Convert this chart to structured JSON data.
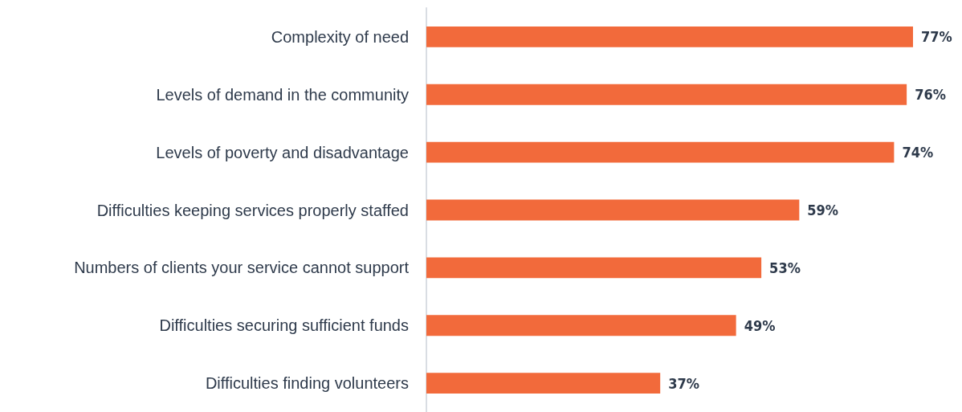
{
  "chart_data": {
    "type": "bar",
    "orientation": "horizontal",
    "tick_labels": "y",
    "categories": [
      "Complexity of need",
      "Levels of demand in the community",
      "Levels of poverty and disadvantage",
      "Difficulties keeping services properly staffed",
      "Numbers of clients your service cannot support",
      "Difficulties securing sufficient funds",
      "Difficulties finding volunteers"
    ],
    "values": [
      77,
      76,
      74,
      59,
      53,
      49,
      37
    ],
    "value_labels": [
      "77%",
      "76%",
      "74%",
      "59%",
      "53%",
      "49%",
      "37%"
    ],
    "color": "#f26a3b"
  }
}
